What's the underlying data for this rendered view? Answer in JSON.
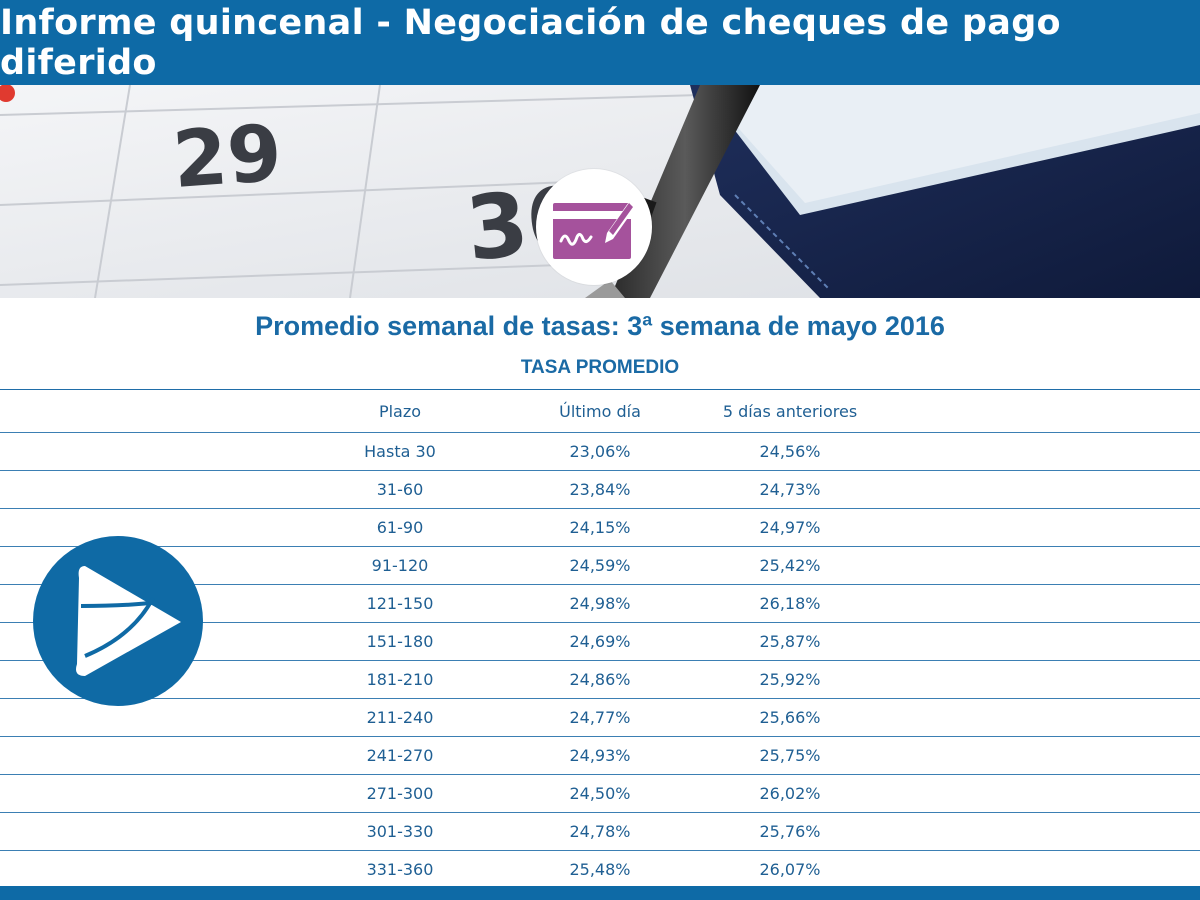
{
  "header": {
    "title": "Informe quincenal - Negociación de cheques de pago diferido"
  },
  "photo": {
    "calendar_days": [
      "29",
      "30"
    ]
  },
  "icons": {
    "badge": "signed-cheque-icon",
    "logo": "play-arrow-logo"
  },
  "colors": {
    "brand_blue": "#0e6aa6",
    "badge_purple": "#a5529c"
  },
  "subtitle": "Promedio semanal de tasas: 3ª semana de mayo 2016",
  "table": {
    "caption": "TASA PROMEDIO",
    "columns": [
      "Plazo",
      "Último día",
      "5 días anteriores"
    ],
    "rows": [
      [
        "Hasta 30",
        "23,06%",
        "24,56%"
      ],
      [
        "31-60",
        "23,84%",
        "24,73%"
      ],
      [
        "61-90",
        "24,15%",
        "24,97%"
      ],
      [
        "91-120",
        "24,59%",
        "25,42%"
      ],
      [
        "121-150",
        "24,98%",
        "26,18%"
      ],
      [
        "151-180",
        "24,69%",
        "25,87%"
      ],
      [
        "181-210",
        "24,86%",
        "25,92%"
      ],
      [
        "211-240",
        "24,77%",
        "25,66%"
      ],
      [
        "241-270",
        "24,93%",
        "25,75%"
      ],
      [
        "271-300",
        "24,50%",
        "26,02%"
      ],
      [
        "301-330",
        "24,78%",
        "25,76%"
      ],
      [
        "331-360",
        "25,48%",
        "26,07%"
      ]
    ]
  }
}
